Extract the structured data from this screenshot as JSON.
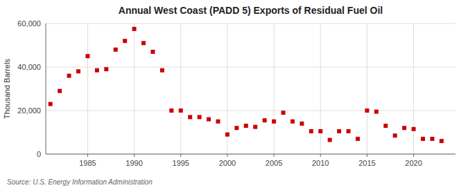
{
  "chart_data": {
    "type": "scatter",
    "title": "Annual West Coast (PADD 5) Exports of Residual Fuel Oil",
    "y_label": "Thousand Barrels",
    "annotations": [
      "Source: U.S. Energy Information Administration"
    ],
    "x": [
      1981,
      1982,
      1983,
      1984,
      1985,
      1986,
      1987,
      1988,
      1989,
      1990,
      1991,
      1992,
      1993,
      1994,
      1995,
      1996,
      1997,
      1998,
      1999,
      2000,
      2001,
      2002,
      2003,
      2004,
      2005,
      2006,
      2007,
      2008,
      2009,
      2010,
      2011,
      2012,
      2013,
      2014,
      2015,
      2016,
      2017,
      2018,
      2019,
      2020,
      2021,
      2022,
      2023
    ],
    "values": [
      23000,
      29000,
      36000,
      38000,
      45000,
      38500,
      39000,
      48000,
      52000,
      57500,
      51000,
      47000,
      38500,
      20000,
      20000,
      17000,
      17000,
      16000,
      15000,
      9000,
      12000,
      13000,
      12500,
      15500,
      15000,
      19000,
      15000,
      14000,
      10500,
      10500,
      6500,
      10500,
      10500,
      7000,
      20000,
      19500,
      13000,
      8500,
      12000,
      11500,
      7000,
      7000,
      6000
    ],
    "color": "#cc0000",
    "marker": "square",
    "xlim": [
      1980.5,
      2024.5
    ],
    "xticks": [
      1985,
      1990,
      1995,
      2000,
      2005,
      2010,
      2015,
      2020
    ],
    "ylim": [
      0,
      60000
    ],
    "yticks": [
      0,
      {
        "value": 20000,
        "label": "20,000"
      },
      {
        "value": 40000,
        "label": "40,000"
      },
      {
        "value": 60000,
        "label": "60,000"
      }
    ],
    "grid": true
  }
}
